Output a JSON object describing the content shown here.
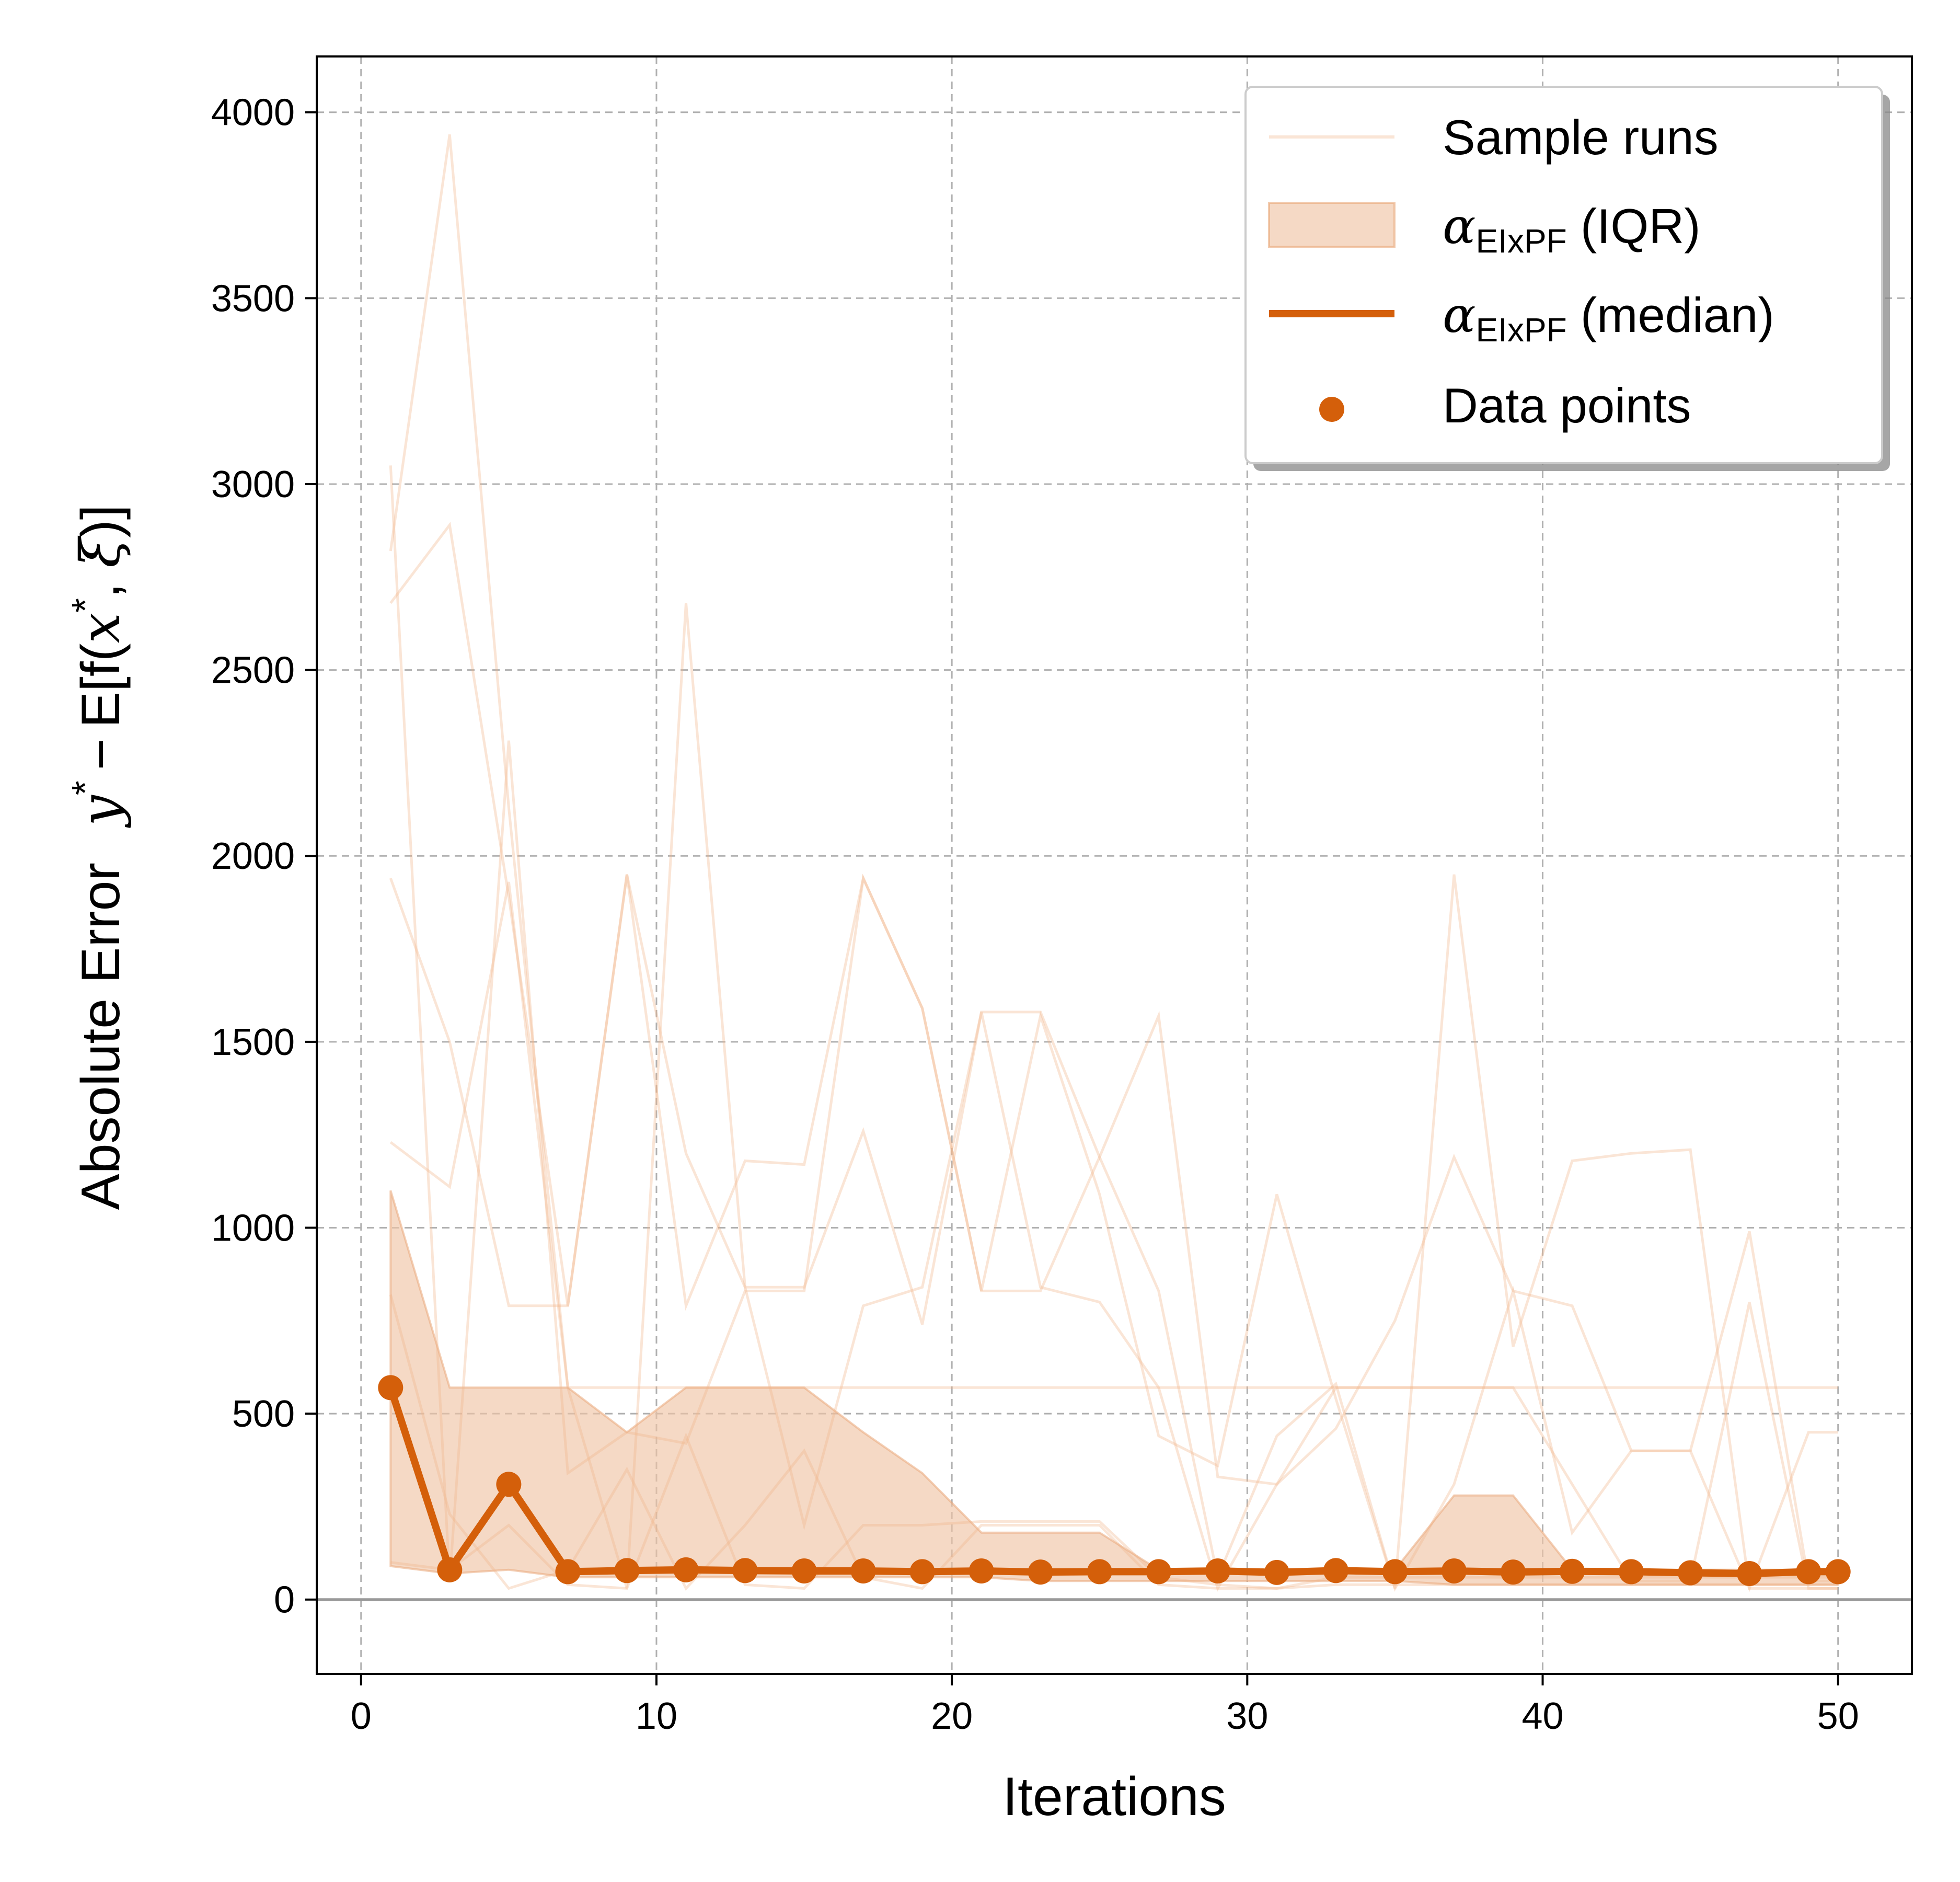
{
  "chart_data": {
    "type": "line",
    "xlabel": "Iterations",
    "ylabel": {
      "prefix": "Absolute Error",
      "math": {
        "y": "y",
        "star": "*",
        "minus": "−",
        "expect": "E[f(",
        "x": "x",
        "comma": ", ",
        "xi": "ξ",
        "close": ")]"
      }
    },
    "xlim": [
      -1.5,
      52.5
    ],
    "ylim": [
      -200,
      4150
    ],
    "xticks": [
      0,
      10,
      20,
      30,
      40,
      50
    ],
    "yticks": [
      0,
      500,
      1000,
      1500,
      2000,
      2500,
      3000,
      3500,
      4000
    ],
    "grid": true,
    "legend_position": "top-right",
    "colors": {
      "accent": "#d45f0a",
      "band": "#f0c5a6",
      "sample": "#f2b48a",
      "grid": "#b0b0b0",
      "zero_line": "#999999"
    },
    "legend": [
      {
        "kind": "sample",
        "label": "Sample runs"
      },
      {
        "kind": "band",
        "label_main": "α",
        "label_sub": "EIxPF",
        "label_rest": " (IQR)"
      },
      {
        "kind": "median",
        "label_main": "α",
        "label_sub": "EIxPF",
        "label_rest": " (median)"
      },
      {
        "kind": "points",
        "label": "Data points"
      }
    ],
    "x": [
      1,
      3,
      5,
      7,
      9,
      11,
      13,
      15,
      17,
      19,
      21,
      23,
      25,
      27,
      29,
      31,
      33,
      35,
      37,
      39,
      41,
      43,
      45,
      47,
      49,
      50
    ],
    "median": [
      570,
      80,
      310,
      75,
      78,
      80,
      78,
      77,
      77,
      75,
      77,
      74,
      75,
      75,
      77,
      73,
      78,
      75,
      77,
      74,
      76,
      75,
      72,
      70,
      75,
      75
    ],
    "iqr_lower": [
      90,
      70,
      80,
      60,
      60,
      60,
      60,
      60,
      60,
      60,
      60,
      50,
      50,
      50,
      50,
      50,
      50,
      50,
      40,
      40,
      40,
      40,
      40,
      40,
      40,
      40
    ],
    "iqr_upper": [
      1100,
      570,
      570,
      570,
      450,
      570,
      570,
      570,
      450,
      340,
      180,
      180,
      180,
      80,
      80,
      80,
      80,
      80,
      280,
      280,
      80,
      80,
      80,
      80,
      80,
      80
    ],
    "sample_runs": [
      {
        "values": [
          2820,
          3940,
          2130,
          570,
          570,
          570,
          570,
          570,
          570,
          570,
          570,
          570,
          570,
          570,
          570,
          570,
          570,
          570,
          570,
          570,
          570,
          570,
          570,
          570,
          570,
          570
        ]
      },
      {
        "values": [
          3050,
          50,
          2310,
          340,
          450,
          420,
          830,
          830,
          1940,
          1590,
          830,
          830,
          1190,
          830,
          60,
          440,
          580,
          30,
          310,
          830,
          180,
          400,
          400,
          30,
          450,
          450
        ]
      },
      {
        "values": [
          2680,
          2890,
          1890,
          790,
          1950,
          790,
          1180,
          1170,
          1940,
          1590,
          830,
          1570,
          1090,
          440,
          360,
          1090,
          540,
          30,
          1950,
          680,
          1180,
          1200,
          1210,
          30,
          30,
          30
        ]
      },
      {
        "values": [
          1940,
          1500,
          790,
          790,
          1950,
          1200,
          840,
          840,
          1260,
          740,
          1580,
          1580,
          1190,
          1570,
          330,
          310,
          460,
          750,
          1190,
          830,
          790,
          400,
          400,
          990,
          50,
          50
        ]
      },
      {
        "values": [
          1230,
          1110,
          1930,
          570,
          30,
          2680,
          840,
          200,
          790,
          840,
          1580,
          840,
          800,
          570,
          30,
          310,
          570,
          570,
          570,
          570,
          310,
          50,
          50,
          800,
          30,
          30
        ]
      },
      {
        "values": [
          820,
          230,
          30,
          80,
          350,
          30,
          200,
          400,
          60,
          30,
          200,
          200,
          200,
          40,
          30,
          30,
          60,
          60,
          60,
          60,
          60,
          60,
          60,
          60,
          60,
          60
        ]
      },
      {
        "values": [
          100,
          80,
          200,
          40,
          30,
          440,
          40,
          30,
          200,
          200,
          210,
          210,
          210,
          60,
          40,
          30,
          40,
          40,
          40,
          40,
          40,
          40,
          40,
          40,
          40,
          40
        ]
      }
    ]
  }
}
